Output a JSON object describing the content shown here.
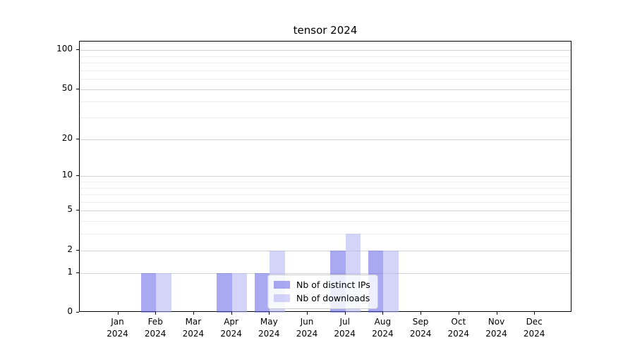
{
  "chart_data": {
    "type": "bar",
    "title": "tensor 2024",
    "categories": [
      "Jan",
      "Feb",
      "Mar",
      "Apr",
      "May",
      "Jun",
      "Jul",
      "Aug",
      "Sep",
      "Oct",
      "Nov",
      "Dec"
    ],
    "year_label": "2024",
    "series": [
      {
        "name": "Nb of distinct IPs",
        "color": "rgba(98,98,232,0.55)",
        "values": [
          0,
          1,
          0,
          1,
          1,
          0,
          2,
          2,
          0,
          0,
          0,
          0
        ]
      },
      {
        "name": "Nb of downloads",
        "color": "rgba(176,176,242,0.55)",
        "values": [
          0,
          1,
          0,
          1,
          2,
          0,
          3,
          2,
          0,
          0,
          0,
          0
        ]
      }
    ],
    "xlabel": "",
    "ylabel": "",
    "yscale": "log1p",
    "ylim": [
      0,
      100
    ],
    "yticks": [
      0,
      1,
      2,
      5,
      10,
      20,
      50,
      100
    ],
    "minor_yticks": [
      3,
      4,
      6,
      7,
      8,
      9,
      30,
      40,
      60,
      70,
      80,
      90
    ],
    "grid": "horizontal",
    "legend_position": "lower center (inside plot)",
    "colors": {
      "major_grid": "#d2d2d2",
      "minor_grid": "#eeeeee",
      "axis": "#000000",
      "background": "#ffffff"
    }
  }
}
